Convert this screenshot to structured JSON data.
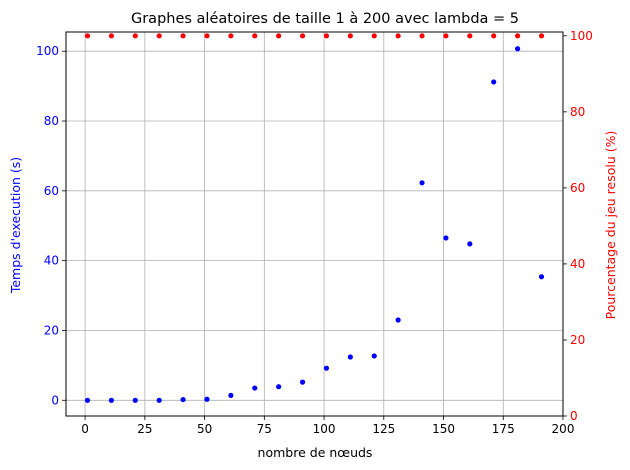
{
  "chart_data": {
    "type": "scatter",
    "title": "Graphes aléatoires de taille 1 à 200 avec lambda = 5",
    "xlabel": "nombre de nœuds",
    "ylabel_left": "Temps d'execution (s)",
    "ylabel_right": "Pourcentage du jeu resolu (%)",
    "xlim": [
      -8,
      200
    ],
    "ylim_left": [
      -4.5,
      105.5
    ],
    "ylim_right": [
      0,
      101
    ],
    "grid": true,
    "x_ticks": [
      0,
      25,
      50,
      75,
      100,
      125,
      150,
      175,
      200
    ],
    "y_left_ticks": [
      0,
      20,
      40,
      60,
      80,
      100
    ],
    "y_right_ticks": [
      0,
      20,
      40,
      60,
      80,
      100
    ],
    "x_tick_labels": [
      "0",
      "25",
      "50",
      "75",
      "100",
      "125",
      "150",
      "175",
      "200"
    ],
    "y_left_tick_labels": [
      "0",
      "20",
      "40",
      "60",
      "80",
      "100"
    ],
    "y_right_tick_labels": [
      "0",
      "20",
      "40",
      "60",
      "80",
      "100"
    ],
    "x": [
      1,
      11,
      21,
      31,
      41,
      51,
      61,
      71,
      81,
      91,
      101,
      111,
      121,
      131,
      141,
      151,
      161,
      171,
      181,
      191
    ],
    "series": [
      {
        "axis": "left",
        "color": "#0000ff",
        "values": [
          0.0,
          0.0,
          0.0,
          0.0,
          0.2,
          0.3,
          1.4,
          3.5,
          3.9,
          5.2,
          9.2,
          12.4,
          12.7,
          23.0,
          62.3,
          46.5,
          44.8,
          91.2,
          100.7,
          35.4
        ]
      },
      {
        "axis": "right",
        "color": "#ff0000",
        "values": [
          100,
          100,
          100,
          100,
          100,
          100,
          100,
          100,
          100,
          100,
          100,
          100,
          100,
          100,
          100,
          100,
          100,
          100,
          100,
          100
        ]
      }
    ]
  }
}
